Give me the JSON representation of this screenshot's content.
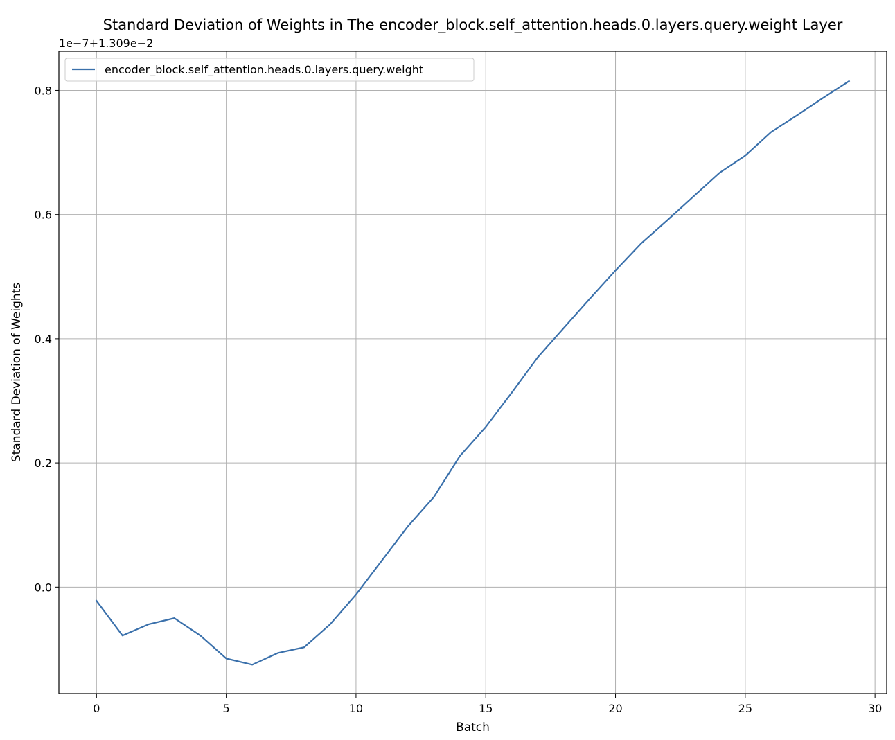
{
  "chart_data": {
    "type": "line",
    "title": "Standard Deviation of Weights in The encoder_block.self_attention.heads.0.layers.query.weight Layer",
    "xlabel": "Batch",
    "ylabel": "Standard Deviation of Weights",
    "axis_offset_label": "1e−7+1.309e−2",
    "xlim": [
      -1.45,
      30.45
    ],
    "ylim": [
      -0.1715,
      0.863
    ],
    "x_ticks": [
      0,
      5,
      10,
      15,
      20,
      25,
      30
    ],
    "x_tick_labels": [
      "0",
      "5",
      "10",
      "15",
      "20",
      "25",
      "30"
    ],
    "y_ticks": [
      0.0,
      0.2,
      0.4,
      0.6,
      0.8
    ],
    "y_tick_labels": [
      "0.0",
      "0.2",
      "0.4",
      "0.6",
      "0.8"
    ],
    "grid": true,
    "legend_position": "upper-left",
    "colors": {
      "series": "#3a70ab",
      "grid": "#b0b0b0",
      "axes": "#000000"
    },
    "series": [
      {
        "name": "encoder_block.self_attention.heads.0.layers.query.weight",
        "x": [
          0,
          1,
          2,
          3,
          4,
          5,
          6,
          7,
          8,
          9,
          10,
          11,
          12,
          13,
          14,
          15,
          16,
          17,
          18,
          19,
          20,
          21,
          22,
          23,
          24,
          25,
          26,
          27,
          28,
          29
        ],
        "values": [
          -0.022,
          -0.078,
          -0.06,
          -0.05,
          -0.078,
          -0.115,
          -0.125,
          -0.106,
          -0.097,
          -0.06,
          -0.012,
          0.043,
          0.098,
          0.145,
          0.211,
          0.258,
          0.313,
          0.37,
          0.417,
          0.464,
          0.51,
          0.554,
          0.591,
          0.629,
          0.667,
          0.695,
          0.733,
          0.76,
          0.788,
          0.815
        ]
      }
    ]
  }
}
